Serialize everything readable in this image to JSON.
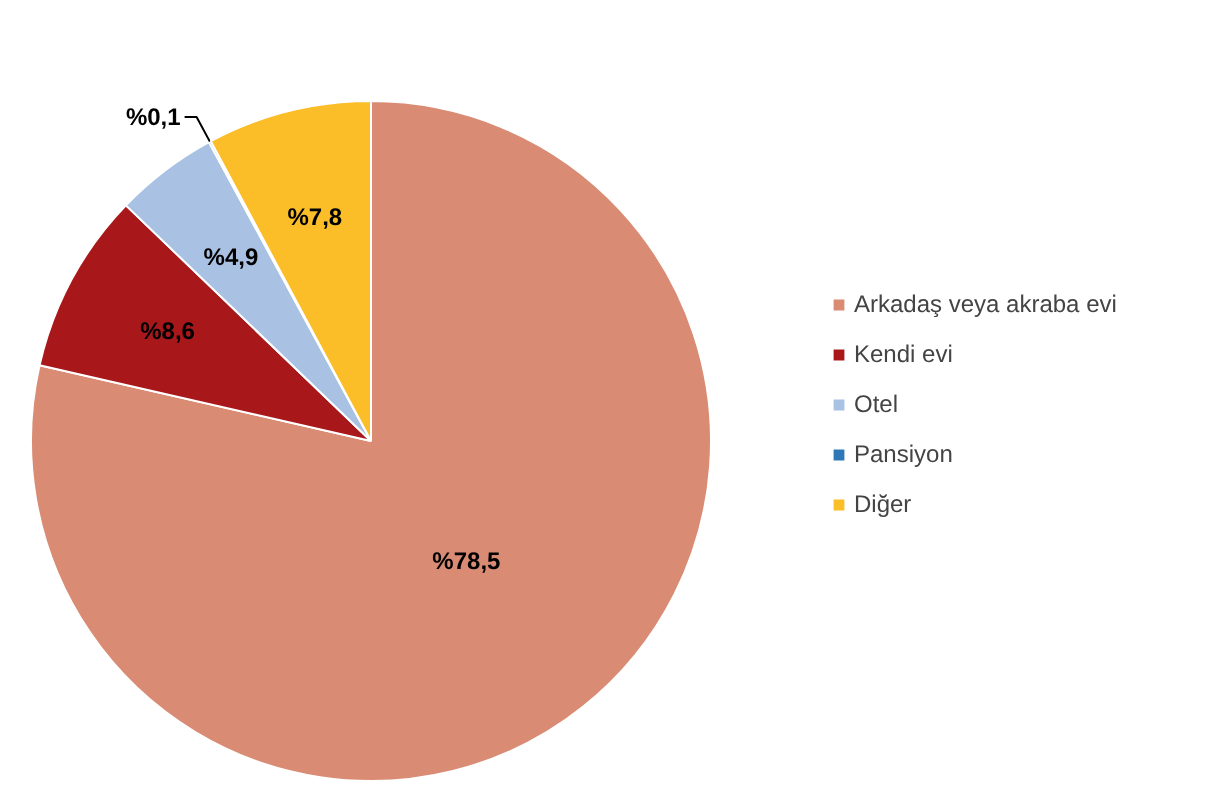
{
  "chart_data": {
    "type": "pie",
    "categories": [
      "Arkadaş veya akraba evi",
      "Kendi evi",
      "Otel",
      "Pansiyon",
      "Diğer"
    ],
    "values": [
      78.5,
      8.6,
      4.9,
      0.1,
      7.8
    ],
    "colors": [
      "#d98b73",
      "#a8181a",
      "#a9c1e2",
      "#2e78b7",
      "#fbbd28"
    ],
    "value_labels": [
      "%78,5",
      "%8,6",
      "%4,9",
      "%0,1",
      "%7,8"
    ],
    "legend": "right"
  }
}
